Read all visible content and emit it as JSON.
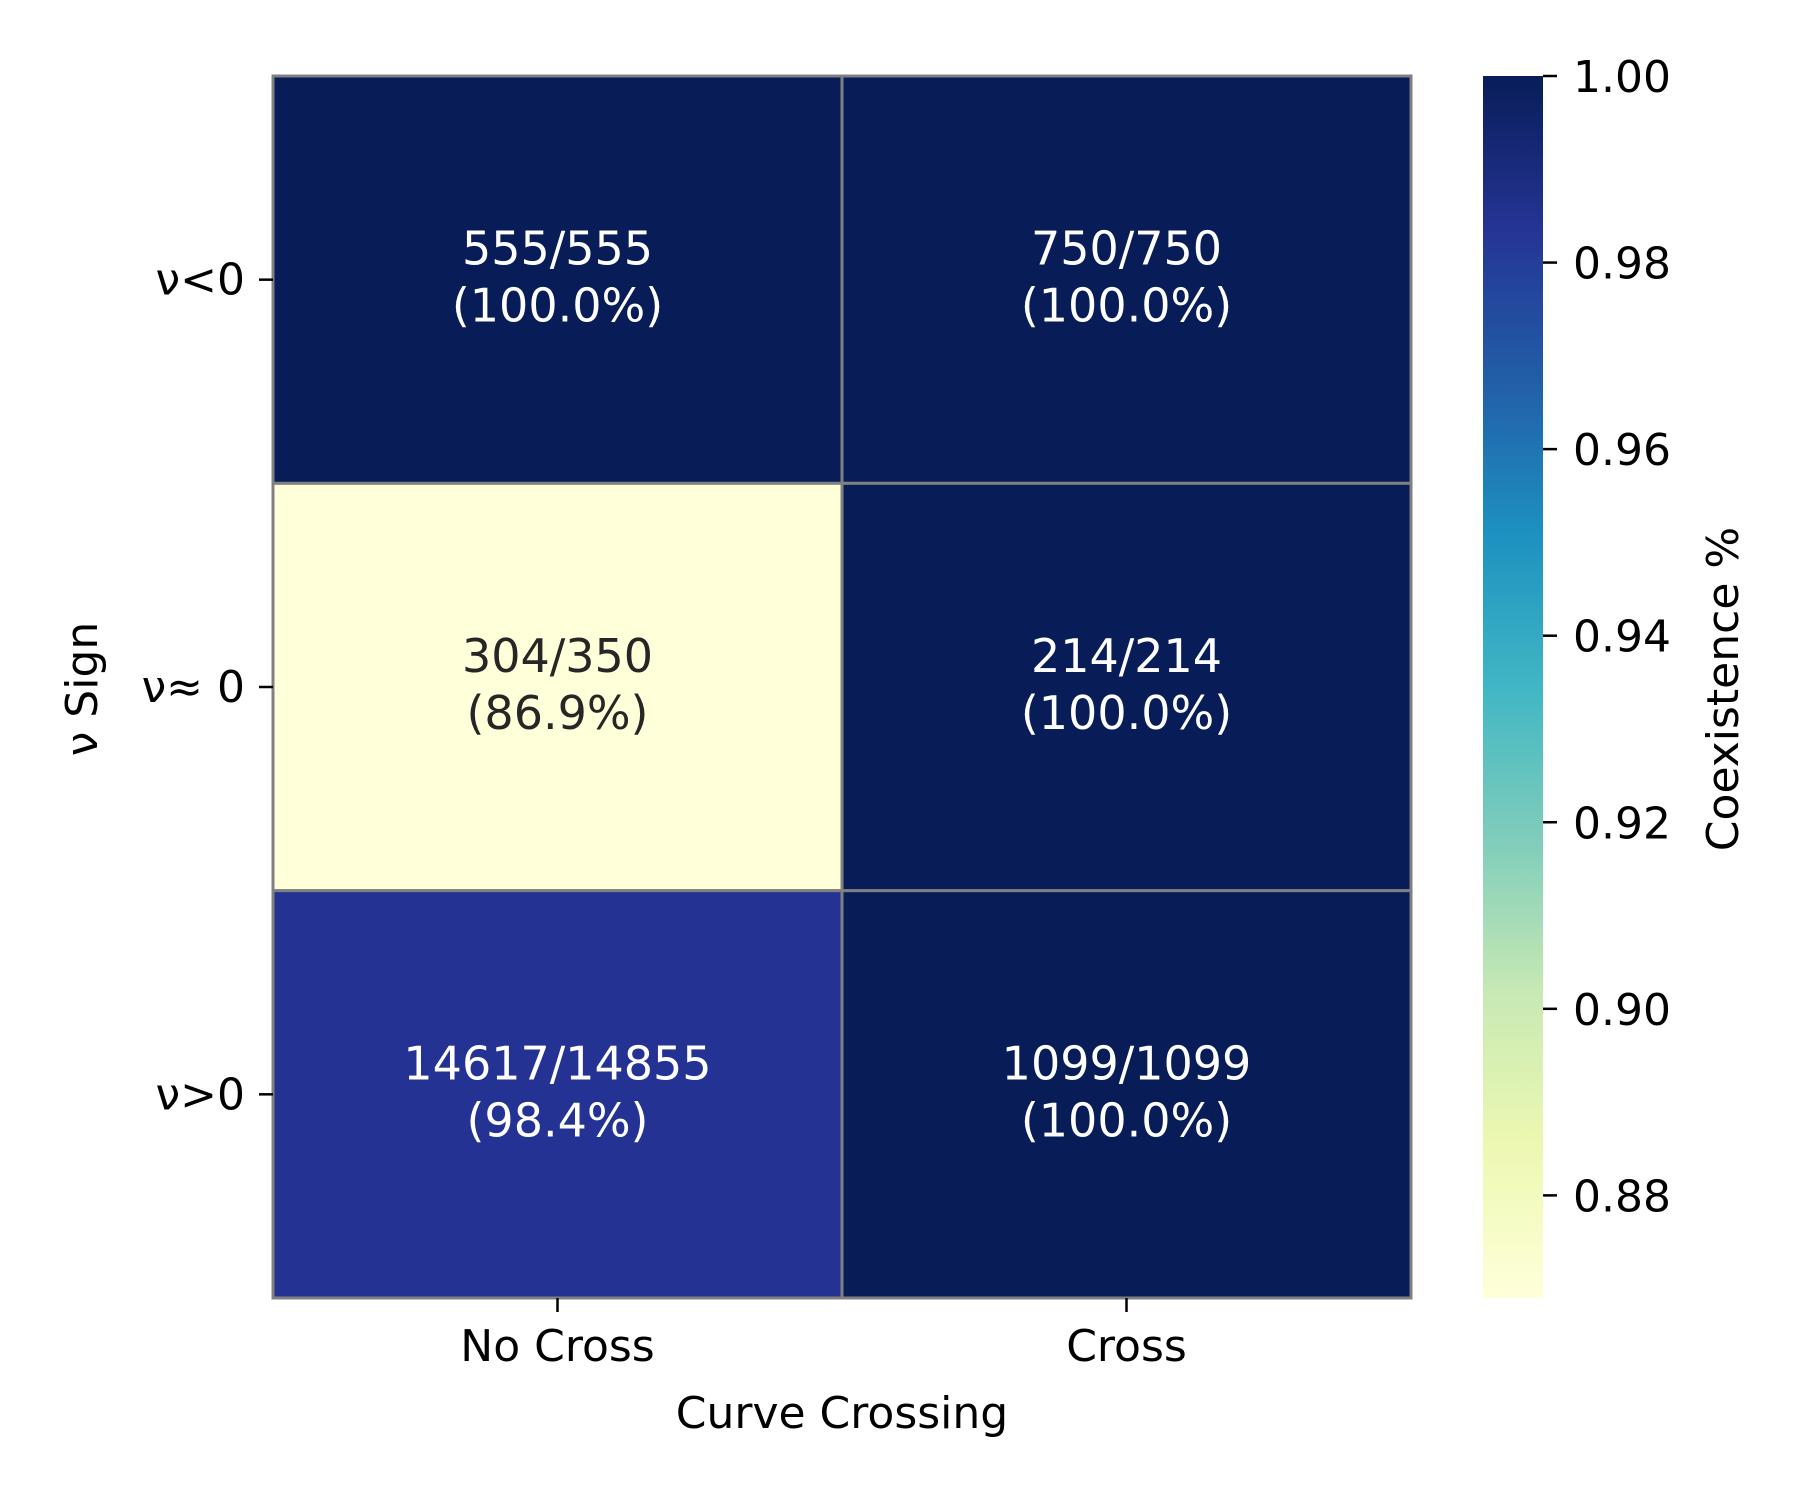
{
  "chart_data": {
    "type": "heatmap",
    "title": "",
    "xlabel": "Curve Crossing",
    "ylabel": "ν Sign",
    "x_categories": [
      "No Cross",
      "Cross"
    ],
    "y_categories": [
      "ν<0",
      "ν≈ 0",
      "ν>0"
    ],
    "values": [
      [
        1.0,
        1.0
      ],
      [
        0.869,
        1.0
      ],
      [
        0.984,
        1.0
      ]
    ],
    "annotations": [
      [
        {
          "count": "555/555",
          "pct": "(100.0%)"
        },
        {
          "count": "750/750",
          "pct": "(100.0%)"
        }
      ],
      [
        {
          "count": "304/350",
          "pct": "(86.9%)"
        },
        {
          "count": "214/214",
          "pct": "(100.0%)"
        }
      ],
      [
        {
          "count": "14617/14855",
          "pct": "(98.4%)"
        },
        {
          "count": "1099/1099",
          "pct": "(100.0%)"
        }
      ]
    ],
    "colorbar": {
      "label": "Coexistence %",
      "range": [
        0.869,
        1.0
      ],
      "ticks": [
        0.88,
        0.9,
        0.92,
        0.94,
        0.96,
        0.98,
        1.0
      ],
      "tick_labels": [
        "0.88",
        "0.90",
        "0.92",
        "0.94",
        "0.96",
        "0.98",
        "1.00"
      ],
      "colormap": "YlGnBu",
      "colormap_stops": [
        "#ffffd9",
        "#edf8b1",
        "#c7e9b4",
        "#7fcdbb",
        "#41b6c4",
        "#1d91c0",
        "#225ea8",
        "#253494",
        "#081d58"
      ]
    },
    "grid_line_color": "#808080",
    "annotation_color_dark": "#262626",
    "annotation_color_light": "#ffffff"
  }
}
